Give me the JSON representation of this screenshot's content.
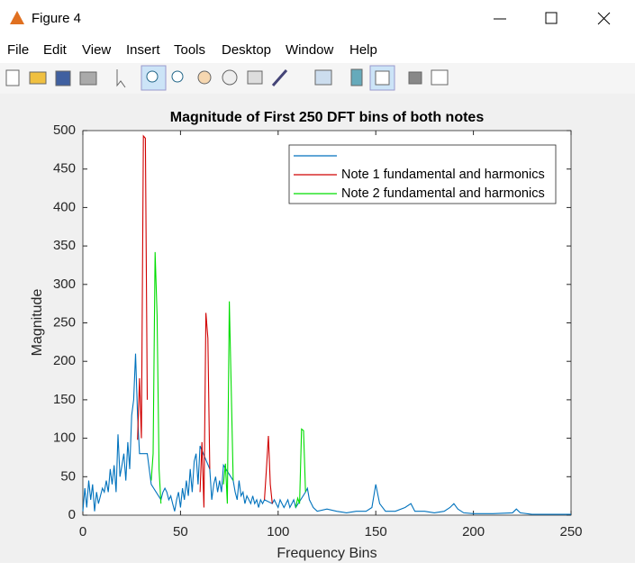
{
  "window": {
    "title": "Figure 4",
    "menu": [
      "File",
      "Edit",
      "View",
      "Insert",
      "Tools",
      "Desktop",
      "Window",
      "Help"
    ]
  },
  "chart_data": {
    "type": "line",
    "title": "Magnitude of First 250 DFT bins of both notes",
    "x_label": "Frequency Bins",
    "y_label": "Magnitude",
    "xlim": [
      0,
      250
    ],
    "xticks": [
      0,
      50,
      100,
      150,
      200,
      250
    ],
    "ylim": [
      0,
      500
    ],
    "yticks": [
      0,
      50,
      100,
      150,
      200,
      250,
      300,
      350,
      400,
      450,
      500
    ],
    "legend": "northeast",
    "series": [
      {
        "color": "#0072bd",
        "x": [
          0,
          1,
          2,
          3,
          4,
          5,
          6,
          7,
          8,
          9,
          10,
          11,
          12,
          13,
          14,
          15,
          16,
          17,
          18,
          19,
          20,
          21,
          22,
          23,
          24,
          25,
          26,
          27,
          28,
          29,
          33,
          34,
          35,
          40,
          41,
          42,
          43,
          44,
          45,
          46,
          47,
          48,
          49,
          50,
          51,
          52,
          53,
          54,
          55,
          56,
          57,
          58,
          59,
          60,
          65,
          66,
          67,
          68,
          69,
          70,
          71,
          72,
          77,
          78,
          79,
          80,
          81,
          82,
          83,
          84,
          85,
          86,
          87,
          88,
          89,
          90,
          91,
          92,
          93,
          97,
          98,
          99,
          100,
          101,
          102,
          103,
          104,
          105,
          106,
          107,
          108,
          109,
          114,
          115,
          116,
          117,
          118,
          120,
          125,
          130,
          135,
          140,
          145,
          148,
          150,
          152,
          155,
          160,
          165,
          168,
          170,
          175,
          180,
          185,
          188,
          190,
          192,
          195,
          200,
          210,
          220,
          222,
          224,
          230,
          240,
          250
        ],
        "values": [
          5,
          35,
          10,
          45,
          20,
          40,
          5,
          30,
          15,
          25,
          35,
          30,
          45,
          30,
          60,
          40,
          65,
          30,
          105,
          50,
          65,
          80,
          45,
          95,
          60,
          130,
          150,
          210,
          130,
          80,
          80,
          60,
          40,
          20,
          30,
          35,
          30,
          20,
          25,
          15,
          5,
          20,
          30,
          10,
          35,
          20,
          45,
          25,
          60,
          30,
          70,
          80,
          40,
          90,
          60,
          20,
          40,
          50,
          30,
          45,
          30,
          65,
          45,
          30,
          20,
          45,
          25,
          30,
          15,
          25,
          20,
          15,
          25,
          15,
          20,
          10,
          20,
          15,
          20,
          15,
          20,
          15,
          10,
          20,
          15,
          10,
          15,
          20,
          10,
          15,
          20,
          10,
          30,
          35,
          20,
          15,
          10,
          5,
          8,
          5,
          3,
          5,
          5,
          10,
          40,
          15,
          5,
          5,
          10,
          15,
          5,
          5,
          3,
          5,
          10,
          15,
          8,
          3,
          2,
          2,
          3,
          8,
          3,
          1,
          1,
          1
        ]
      },
      {
        "name": "Note 1 fundamental and harmonics",
        "color": "#d00000",
        "x": [
          28,
          29,
          30,
          31,
          32,
          33,
          null,
          60,
          61,
          62,
          63,
          64,
          65,
          null,
          93,
          94,
          95,
          96,
          97
        ],
        "values": [
          98,
          178,
          100,
          493,
          490,
          150,
          null,
          30,
          95,
          10,
          263,
          230,
          60,
          null,
          20,
          60,
          103,
          40,
          15
        ]
      },
      {
        "name": "Note 2 fundamental and harmonics",
        "color": "#00dd00",
        "x": [
          35,
          36,
          37,
          38,
          39,
          40,
          null,
          72,
          73,
          74,
          75,
          76,
          77,
          null,
          109,
          110,
          111,
          112,
          113,
          114
        ],
        "values": [
          45,
          80,
          342,
          260,
          60,
          15,
          null,
          40,
          67,
          15,
          278,
          160,
          45,
          null,
          10,
          22,
          15,
          112,
          110,
          30
        ]
      }
    ]
  }
}
